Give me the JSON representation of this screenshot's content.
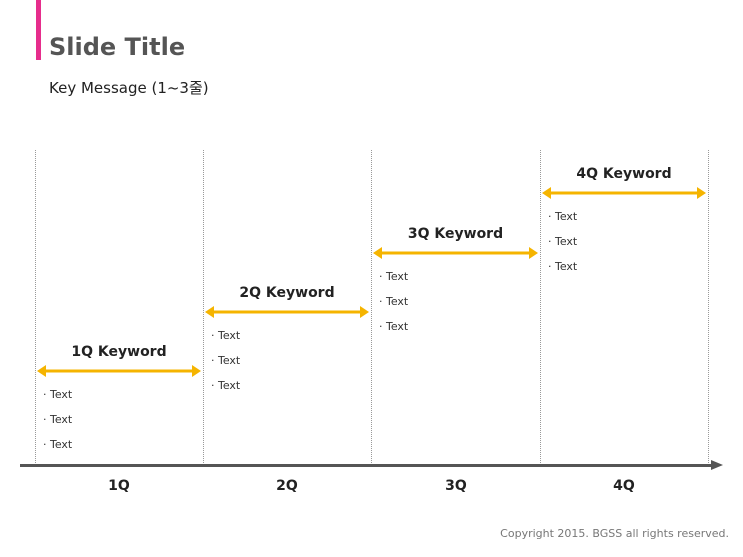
{
  "header": {
    "title": "Slide Title",
    "key_message": "Key Message (1~3줄)",
    "accent_color": "#e62d8c"
  },
  "timeline": {
    "arrow_color": "#f5b400",
    "axis_color": "#555555",
    "quarters": [
      {
        "label": "1Q",
        "keyword": "1Q Keyword",
        "items": [
          "· Text",
          "· Text",
          "· Text"
        ]
      },
      {
        "label": "2Q",
        "keyword": "2Q Keyword",
        "items": [
          "· Text",
          "· Text",
          "· Text"
        ]
      },
      {
        "label": "3Q",
        "keyword": "3Q Keyword",
        "items": [
          "· Text",
          "· Text",
          "· Text"
        ]
      },
      {
        "label": "4Q",
        "keyword": "4Q Keyword",
        "items": [
          "· Text",
          "· Text",
          "· Text"
        ]
      }
    ]
  },
  "footer": {
    "copyright": "Copyright 2015. BGSS all rights reserved."
  }
}
